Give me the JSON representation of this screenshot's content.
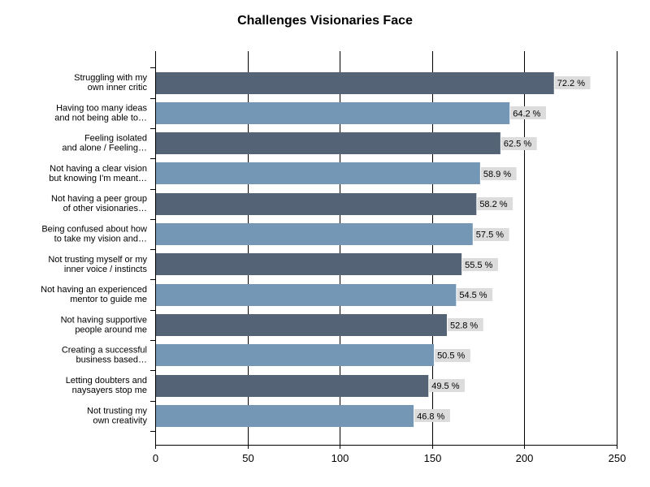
{
  "chart_data": {
    "type": "bar",
    "orientation": "horizontal",
    "title": "Challenges Visionaries Face",
    "xlim": [
      0,
      250
    ],
    "x_ticks": [
      "0",
      "50",
      "100",
      "150",
      "200",
      "250"
    ],
    "grid": true,
    "categories": [
      [
        "Struggling with my",
        "own inner critic"
      ],
      [
        "Having too many ideas",
        "and not being able to…"
      ],
      [
        "Feeling isolated",
        "and alone / Feeling…"
      ],
      [
        "Not having a clear vision",
        "but knowing I'm meant…"
      ],
      [
        "Not having a peer group",
        "of other visionaries…"
      ],
      [
        "Being confused about how",
        "to take my vision and…"
      ],
      [
        "Not trusting myself or my",
        "inner voice / instincts"
      ],
      [
        "Not having an experienced",
        "mentor to guide me"
      ],
      [
        "Not having supportive",
        "people around me"
      ],
      [
        "Creating a successful",
        "business based…"
      ],
      [
        "Letting doubters and",
        "naysayers stop me"
      ],
      [
        "Not trusting my",
        "own creativity"
      ]
    ],
    "values": [
      216,
      192,
      187,
      176,
      174,
      172,
      166,
      163,
      158,
      151,
      148,
      140
    ],
    "data_labels": [
      "72.2 %",
      "64.2 %",
      "62.5 %",
      "58.9 %",
      "58.2 %",
      "57.5 %",
      "55.5 %",
      "54.5 %",
      "52.8 %",
      "50.5 %",
      "49.5 %",
      "46.8 %"
    ],
    "colors": [
      "#546476",
      "#7597b6"
    ],
    "label_bg": "#dcdcdc"
  }
}
